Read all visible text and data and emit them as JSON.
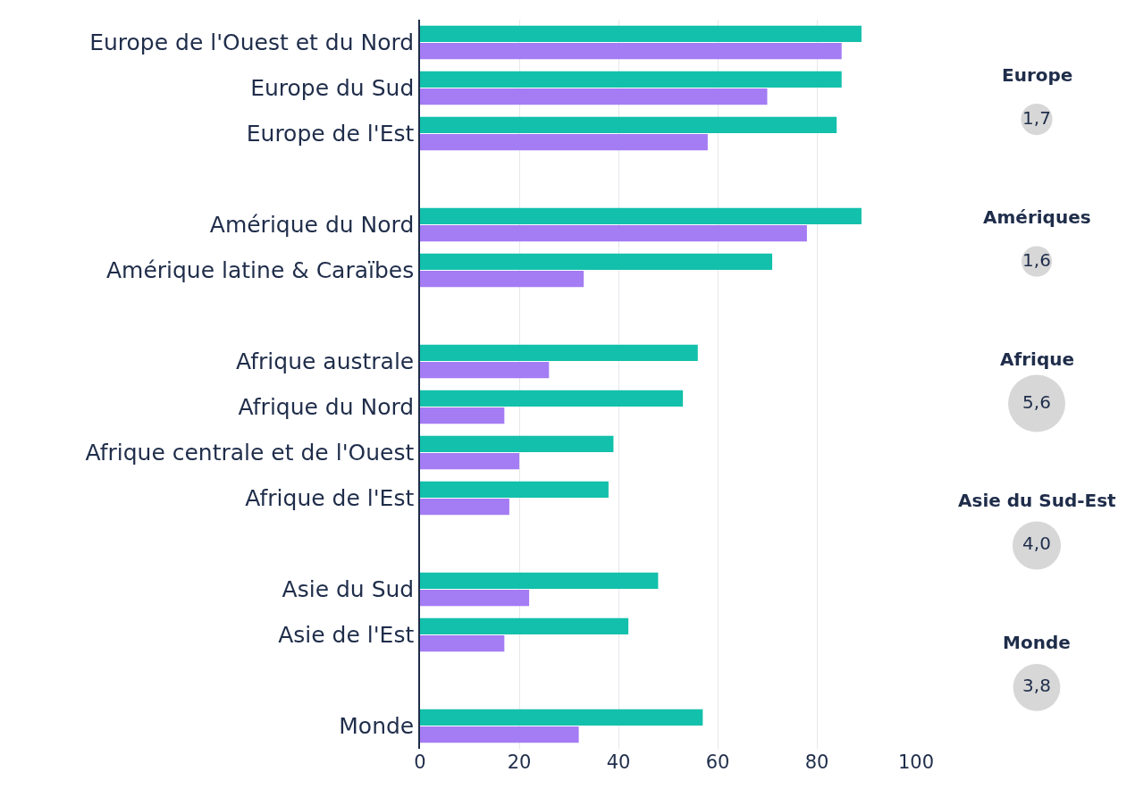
{
  "chart_data": [
    {
      "type": "bar",
      "orientation": "horizontal",
      "categories": [
        "Europe de l'Ouest et du Nord",
        "Europe du Sud",
        "Europe de l'Est",
        null,
        "Amérique du Nord",
        "Amérique latine & Caraïbes",
        null,
        "Afrique australe",
        "Afrique du Nord",
        "Afrique centrale et de l'Ouest",
        "Afrique de l'Est",
        null,
        "Asie du Sud",
        "Asie de l'Est",
        null,
        "Monde"
      ],
      "series": [
        {
          "color": "#13c0ab",
          "values": [
            89,
            85,
            84,
            null,
            89,
            71,
            null,
            56,
            53,
            39,
            38,
            null,
            48,
            42,
            null,
            57
          ]
        },
        {
          "color": "#a47cf4",
          "values": [
            85,
            70,
            58,
            null,
            78,
            33,
            null,
            26,
            17,
            20,
            18,
            null,
            22,
            17,
            null,
            32
          ]
        }
      ],
      "xlim": [
        0,
        100
      ],
      "xticks": [
        0,
        20,
        40,
        60,
        80,
        100
      ],
      "grid": "x"
    },
    {
      "type": "other",
      "categories": [
        "Europe",
        "Amériques",
        "Afrique",
        "Asie du Sud-Est",
        "Monde"
      ],
      "values": [
        1.7,
        1.6,
        5.6,
        4.0,
        3.8
      ],
      "value_labels": [
        "1,7",
        "1,6",
        "5,6",
        "4,0",
        "3,8"
      ],
      "color": "#c6c6c6"
    }
  ]
}
